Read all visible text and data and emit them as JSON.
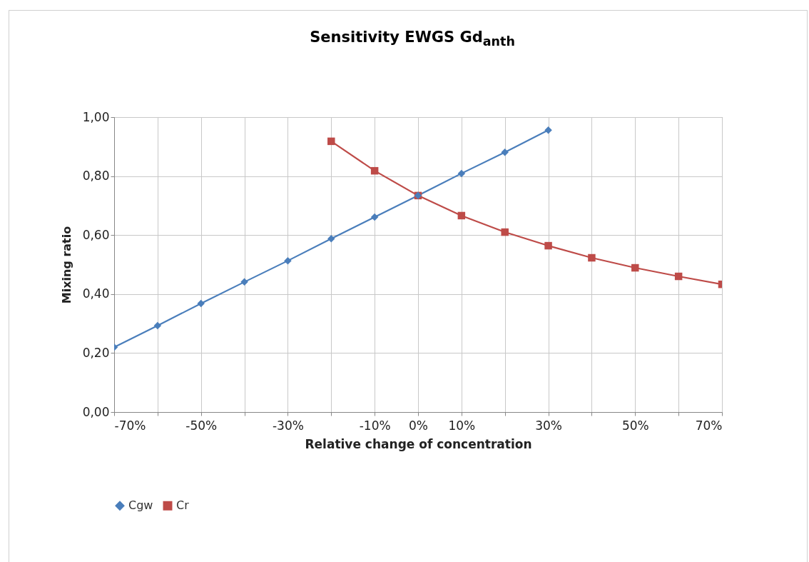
{
  "chart_data": {
    "type": "line",
    "title": "Sensitivity EWGS Gd$_{anth}$",
    "xlabel": "Relative change of concentration",
    "ylabel": "Mixing ratio",
    "xlim": [
      -70,
      70
    ],
    "ylim": [
      0,
      1
    ],
    "xticks": [
      {
        "value": -70,
        "label": "-70%"
      },
      {
        "value": -60,
        "label": null
      },
      {
        "value": -50,
        "label": "-50%"
      },
      {
        "value": -40,
        "label": null
      },
      {
        "value": -30,
        "label": "-30%"
      },
      {
        "value": -20,
        "label": null
      },
      {
        "value": -10,
        "label": "-10%"
      },
      {
        "value": 0,
        "label": "0%"
      },
      {
        "value": 10,
        "label": "10%"
      },
      {
        "value": 20,
        "label": null
      },
      {
        "value": 30,
        "label": "30%"
      },
      {
        "value": 40,
        "label": null
      },
      {
        "value": 50,
        "label": "50%"
      },
      {
        "value": 60,
        "label": null
      },
      {
        "value": 70,
        "label": "70%"
      }
    ],
    "yticks": [
      {
        "value": 0,
        "label": "0,00"
      },
      {
        "value": 0.2,
        "label": "0,20"
      },
      {
        "value": 0.4,
        "label": "0,40"
      },
      {
        "value": 0.6,
        "label": "0,60"
      },
      {
        "value": 0.8,
        "label": "0,80"
      },
      {
        "value": 1,
        "label": "1,00"
      }
    ],
    "grid": true,
    "legend": "bottom",
    "series": [
      {
        "name": "Cgw",
        "color": "#4a7ebb",
        "marker": "diamond",
        "x": [
          -70,
          -60,
          -50,
          -40,
          -30,
          -20,
          -10,
          0,
          10,
          20,
          30
        ],
        "values": [
          0.22,
          0.293,
          0.368,
          0.441,
          0.513,
          0.588,
          0.661,
          0.734,
          0.809,
          0.881,
          0.956
        ]
      },
      {
        "name": "Cr",
        "color": "#be4b48",
        "marker": "square",
        "x": [
          -20,
          -10,
          0,
          10,
          20,
          30,
          40,
          50,
          60,
          70
        ],
        "values": [
          0.918,
          0.818,
          0.734,
          0.666,
          0.61,
          0.564,
          0.523,
          0.489,
          0.46,
          0.433
        ]
      }
    ]
  }
}
